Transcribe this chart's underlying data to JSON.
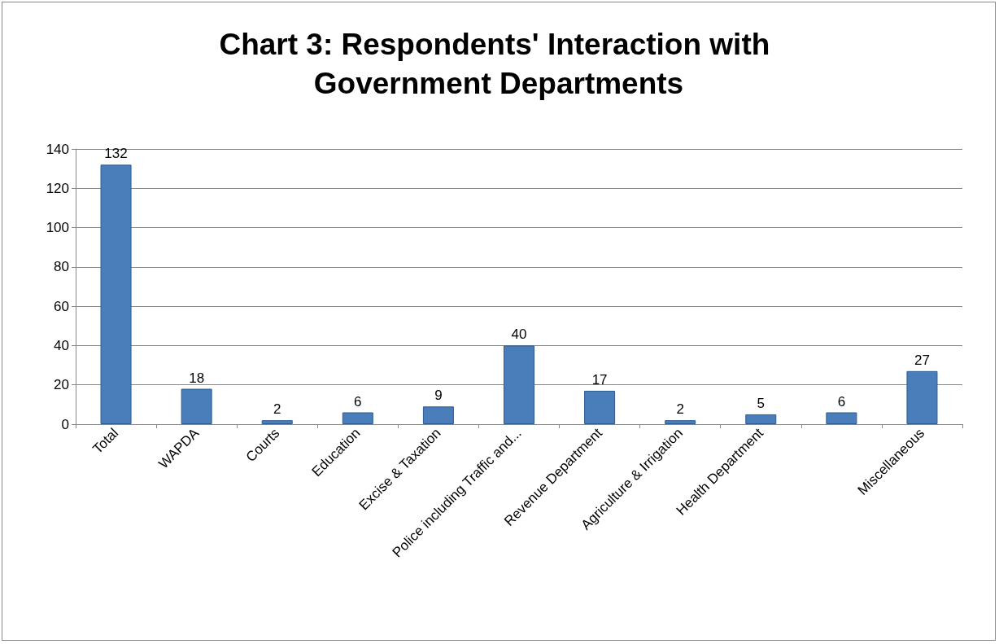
{
  "chart_data": {
    "type": "bar",
    "title": "Chart 3: Respondents' Interaction with Government Departments",
    "categories": [
      "Total",
      "WAPDA",
      "Courts",
      "Education",
      "Excise & Taxation",
      "Police including Traffic and...",
      "Revenue Department",
      "Agriculture & Irrigation",
      "Health Department",
      null,
      "Miscellaneous"
    ],
    "values": [
      132,
      18,
      2,
      6,
      9,
      40,
      17,
      2,
      5,
      6,
      27
    ],
    "color": "#4a7ebb",
    "ylim": [
      0,
      140
    ],
    "yticks": [
      0,
      20,
      40,
      60,
      80,
      100,
      120,
      140
    ],
    "grid": "y",
    "data_labels": true
  }
}
